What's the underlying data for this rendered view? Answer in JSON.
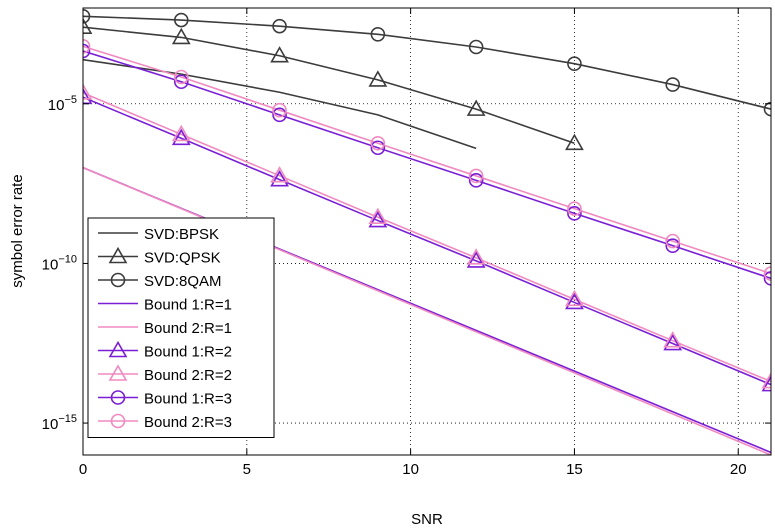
{
  "chart_data": {
    "type": "line",
    "title": "",
    "xlabel": "SNR",
    "ylabel": "symbol error rate",
    "xlim": [
      0,
      21
    ],
    "ylim": [
      1e-16,
      0.01
    ],
    "yscale": "log",
    "grid": true,
    "grid_style": "dotted",
    "legend_position": "bottom-left",
    "xticks": [
      0,
      5,
      10,
      15,
      20
    ],
    "xtick_labels": [
      "0",
      "5",
      "10",
      "15",
      "20"
    ],
    "yticks": [
      1e-05,
      1e-10,
      1e-15
    ],
    "ytick_labels": [
      {
        "base": "10",
        "exp": "−5"
      },
      {
        "base": "10",
        "exp": "−10"
      },
      {
        "base": "10",
        "exp": "−15"
      }
    ],
    "series": [
      {
        "name": "SVD:BPSK",
        "color": "#3c3c3c",
        "marker": "none",
        "x": [
          0,
          3,
          6,
          9,
          12
        ],
        "y": [
          0.00024,
          8.5e-05,
          2.3e-05,
          4.5e-06,
          4e-07
        ]
      },
      {
        "name": "SVD:QPSK",
        "color": "#3c3c3c",
        "marker": "triangle",
        "x": [
          0,
          3,
          6,
          9,
          12,
          15
        ],
        "y": [
          0.0025,
          0.0012,
          0.00032,
          5.6e-05,
          6.8e-06,
          5.8e-07
        ]
      },
      {
        "name": "SVD:8QAM",
        "color": "#3c3c3c",
        "marker": "circle",
        "x": [
          0,
          3,
          6,
          9,
          12,
          15,
          18,
          21
        ],
        "y": [
          0.0055,
          0.0042,
          0.0027,
          0.0015,
          0.0006,
          0.00018,
          4e-05,
          6.8e-06
        ]
      },
      {
        "name": "Bound 1:R=1",
        "color": "#7a1fd6",
        "marker": "none",
        "x": [
          0,
          21
        ],
        "y": [
          1e-07,
          1.2e-16
        ]
      },
      {
        "name": "Bound 2:R=1",
        "color": "#f08ac0",
        "marker": "none",
        "x": [
          0,
          21
        ],
        "y": [
          1e-07,
          1e-16
        ]
      },
      {
        "name": "Bound 1:R=2",
        "color": "#7a1fd6",
        "marker": "triangle",
        "x": [
          0,
          3,
          6,
          9,
          12,
          15,
          18,
          21
        ],
        "y": [
          1.6e-05,
          8.3e-07,
          4.2e-08,
          2.2e-09,
          1.2e-10,
          6e-12,
          3.1e-13,
          1.6e-14
        ]
      },
      {
        "name": "Bound 2:R=2",
        "color": "#f08ac0",
        "marker": "triangle",
        "x": [
          0,
          3,
          6,
          9,
          12,
          15,
          18,
          21
        ],
        "y": [
          2.2e-05,
          1.1e-06,
          5.6e-08,
          2.8e-09,
          1.5e-10,
          7.5e-12,
          3.8e-13,
          2e-14
        ]
      },
      {
        "name": "Bound 1:R=3",
        "color": "#7a1fd6",
        "marker": "circle",
        "x": [
          0,
          3,
          6,
          9,
          12,
          15,
          18,
          21
        ],
        "y": [
          0.00045,
          4.9e-05,
          4.5e-06,
          4.2e-07,
          4e-08,
          3.7e-09,
          3.6e-10,
          3.4e-11
        ]
      },
      {
        "name": "Bound 2:R=3",
        "color": "#f08ac0",
        "marker": "circle",
        "x": [
          0,
          3,
          6,
          9,
          12,
          15,
          18,
          21
        ],
        "y": [
          0.00063,
          6.9e-05,
          6.3e-06,
          5.8e-07,
          5.5e-08,
          5.2e-09,
          5e-10,
          4.8e-11
        ]
      }
    ]
  }
}
